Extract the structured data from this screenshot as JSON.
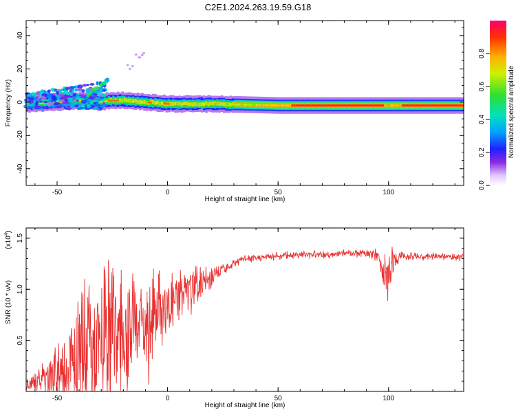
{
  "title": "C2E1.2024.263.19.59.G18",
  "chart_data": [
    {
      "type": "heatmap",
      "xlabel": "Height of straight line (km)",
      "ylabel": "Frequency (Hz)",
      "xlim": [
        -64,
        134
      ],
      "ylim": [
        -50,
        49
      ],
      "xticks": [
        -50,
        0,
        50,
        100
      ],
      "yticks": [
        -40,
        -20,
        0,
        20,
        40
      ],
      "colorbar": {
        "label": "Normalized spectral amplitude",
        "range": [
          0,
          1
        ],
        "ticks": [
          0.0,
          0.2,
          0.4,
          0.6,
          0.8
        ]
      },
      "ridge": {
        "description": "dominant frequency ridge vs height",
        "x": [
          -64,
          -50,
          -40,
          -30,
          -27,
          -20,
          -10,
          0,
          20,
          50,
          80,
          100,
          134
        ],
        "frequency": [
          -1,
          0,
          1,
          0,
          1,
          1,
          0,
          -1,
          -1,
          -2,
          -2,
          -2,
          -2
        ]
      },
      "scatter_band": {
        "description": "low-amplitude spread at low heights",
        "x": [
          -64,
          -50,
          -40,
          -30,
          -28
        ],
        "frequency_high": [
          5,
          8,
          10,
          12,
          14
        ]
      }
    },
    {
      "type": "line",
      "xlabel": "Height of straight line (km)",
      "ylabel": "SNR (10 * v/v)",
      "y_multiplier_label": "(x10",
      "y_multiplier_exponent": "4",
      "xlim": [
        -64,
        134
      ],
      "ylim": [
        0,
        1.6
      ],
      "xticks": [
        -50,
        0,
        50,
        100
      ],
      "yticks": [
        0.5,
        1.0,
        1.5
      ],
      "color": "#e83030",
      "series": [
        {
          "x": [
            -64,
            -60,
            -55,
            -50,
            -45,
            -40,
            -35,
            -30,
            -25,
            -20,
            -15,
            -10,
            -5,
            0,
            5,
            10,
            15,
            20,
            25,
            30,
            35,
            40,
            45,
            50,
            60,
            70,
            80,
            90,
            95,
            98,
            100,
            102,
            105,
            110,
            120,
            134
          ],
          "values": [
            0.05,
            0.08,
            0.12,
            0.2,
            0.28,
            0.35,
            0.45,
            0.42,
            0.55,
            0.6,
            0.68,
            0.6,
            0.78,
            0.85,
            0.95,
            1.0,
            1.05,
            1.12,
            1.2,
            1.26,
            1.3,
            1.3,
            1.32,
            1.33,
            1.34,
            1.34,
            1.35,
            1.35,
            1.33,
            1.2,
            1.05,
            1.3,
            1.32,
            1.32,
            1.32,
            1.32
          ],
          "spread": [
            0.05,
            0.1,
            0.15,
            0.25,
            0.35,
            0.5,
            0.6,
            0.6,
            0.5,
            0.55,
            0.5,
            0.45,
            0.35,
            0.25,
            0.25,
            0.2,
            0.15,
            0.1,
            0.05,
            0.04,
            0.03,
            0.03,
            0.03,
            0.03,
            0.03,
            0.03,
            0.03,
            0.03,
            0.05,
            0.2,
            0.25,
            0.1,
            0.04,
            0.03,
            0.03,
            0.03
          ]
        }
      ]
    }
  ]
}
